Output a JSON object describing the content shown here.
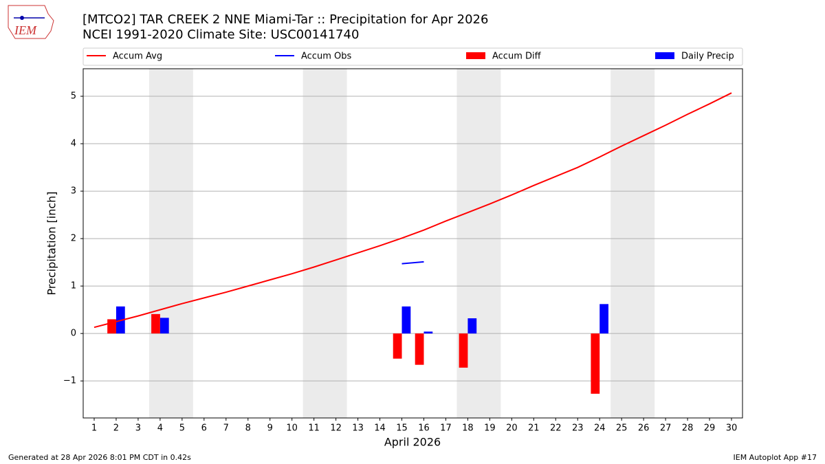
{
  "logo_text": "IEM",
  "footer_left": "Generated at 28 Apr 2026 8:01 PM CDT in 0.42s",
  "footer_right": "IEM Autoplot App #17",
  "chart_data": {
    "type": "bar-line",
    "title": "[MTCO2] TAR CREEK 2 NNE Miami-Tar :: Precipitation for Apr 2026",
    "subtitle": "NCEI 1991-2020 Climate Site: USC00141740",
    "x_label": "April 2026",
    "y_label": "Precipitation [inch]",
    "x": [
      1,
      2,
      3,
      4,
      5,
      6,
      7,
      8,
      9,
      10,
      11,
      12,
      13,
      14,
      15,
      16,
      17,
      18,
      19,
      20,
      21,
      22,
      23,
      24,
      25,
      26,
      27,
      28,
      29,
      30
    ],
    "xlim": [
      0.5,
      30.5
    ],
    "xticks": [
      1,
      2,
      3,
      4,
      5,
      6,
      7,
      8,
      9,
      10,
      11,
      12,
      13,
      14,
      15,
      16,
      17,
      18,
      19,
      20,
      21,
      22,
      23,
      24,
      25,
      26,
      27,
      28,
      29,
      30
    ],
    "ylim": [
      -1.78,
      5.58
    ],
    "yticks": [
      {
        "value": -1,
        "label": "−1"
      },
      0,
      1,
      2,
      3,
      4,
      5
    ],
    "grid": true,
    "shaded_spans": [
      [
        3.5,
        5.5
      ],
      [
        10.5,
        12.5
      ],
      [
        17.5,
        19.5
      ],
      [
        24.5,
        26.5
      ]
    ],
    "series": [
      {
        "name": "Accum Avg",
        "kind": "line",
        "color": "#ff0000",
        "values": [
          0.13,
          0.25,
          0.37,
          0.5,
          0.63,
          0.75,
          0.87,
          1.0,
          1.13,
          1.26,
          1.4,
          1.55,
          1.7,
          1.85,
          2.01,
          2.18,
          2.37,
          2.55,
          2.73,
          2.92,
          3.12,
          3.31,
          3.5,
          3.72,
          3.95,
          4.17,
          4.39,
          4.62,
          4.84,
          5.07
        ]
      },
      {
        "name": "Accum Obs",
        "kind": "line",
        "color": "#0000ff",
        "values": [
          null,
          null,
          null,
          null,
          null,
          null,
          null,
          null,
          null,
          null,
          null,
          null,
          null,
          null,
          1.47,
          1.51,
          null,
          null,
          null,
          null,
          null,
          null,
          null,
          null,
          null,
          null,
          null,
          null,
          null,
          null
        ]
      },
      {
        "name": "Accum Diff",
        "kind": "bar",
        "color": "#ff0000",
        "values": [
          null,
          0.3,
          null,
          0.41,
          null,
          null,
          null,
          null,
          null,
          null,
          null,
          null,
          null,
          null,
          -0.53,
          -0.66,
          null,
          -0.72,
          null,
          null,
          null,
          null,
          null,
          -1.27,
          null,
          null,
          null,
          null,
          null,
          null
        ]
      },
      {
        "name": "Daily Precip",
        "kind": "bar",
        "color": "#0000ff",
        "values": [
          null,
          0.57,
          null,
          0.33,
          null,
          null,
          null,
          null,
          null,
          null,
          null,
          null,
          null,
          null,
          0.57,
          0.04,
          null,
          0.32,
          null,
          null,
          null,
          null,
          null,
          0.62,
          null,
          null,
          null,
          null,
          null,
          null
        ]
      }
    ]
  }
}
